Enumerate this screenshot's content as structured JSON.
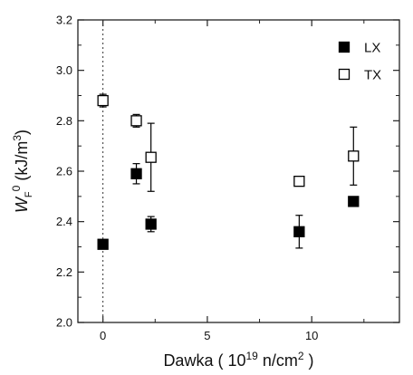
{
  "chart_data": {
    "type": "scatter",
    "xlabel_parts": {
      "pre": "Dawka ( 10",
      "sup": "19",
      "mid": " n/cm",
      "sup2": "2",
      "post": " )"
    },
    "ylabel_parts": {
      "main": "W",
      "sub": "F",
      "sup": "0",
      "post": " (kJ/m",
      "sup2": "3",
      "end": ")"
    },
    "xlim": [
      -1.2,
      14.2
    ],
    "ylim": [
      2.0,
      3.2
    ],
    "x_ticks": [
      0,
      5,
      10
    ],
    "x_tick_labels": [
      "0",
      "5",
      "10"
    ],
    "y_ticks": [
      2.0,
      2.2,
      2.4,
      2.6,
      2.8,
      3.0,
      3.2
    ],
    "y_tick_labels": [
      "2.0",
      "2.2",
      "2.4",
      "2.6",
      "2.8",
      "3.0",
      "3.2"
    ],
    "vertical_reference_x": 0,
    "legend_position": "top-right",
    "series": [
      {
        "name": "LX",
        "marker": "filled-square",
        "color": "#000000",
        "points": [
          {
            "x": 0,
            "y": 2.31,
            "err": null
          },
          {
            "x": 1.6,
            "y": 2.59,
            "err": 0.04
          },
          {
            "x": 2.3,
            "y": 2.39,
            "err": 0.03
          },
          {
            "x": 9.4,
            "y": 2.36,
            "err": 0.065
          },
          {
            "x": 12.0,
            "y": 2.48,
            "err": null
          }
        ]
      },
      {
        "name": "TX",
        "marker": "open-square",
        "color": "#000000",
        "points": [
          {
            "x": 0,
            "y": 2.88,
            "err": 0.025
          },
          {
            "x": 1.6,
            "y": 2.8,
            "err": 0.025
          },
          {
            "x": 2.3,
            "y": 2.655,
            "err": 0.135
          },
          {
            "x": 9.4,
            "y": 2.56,
            "err": null
          },
          {
            "x": 12.0,
            "y": 2.66,
            "err": 0.115
          }
        ]
      }
    ]
  }
}
